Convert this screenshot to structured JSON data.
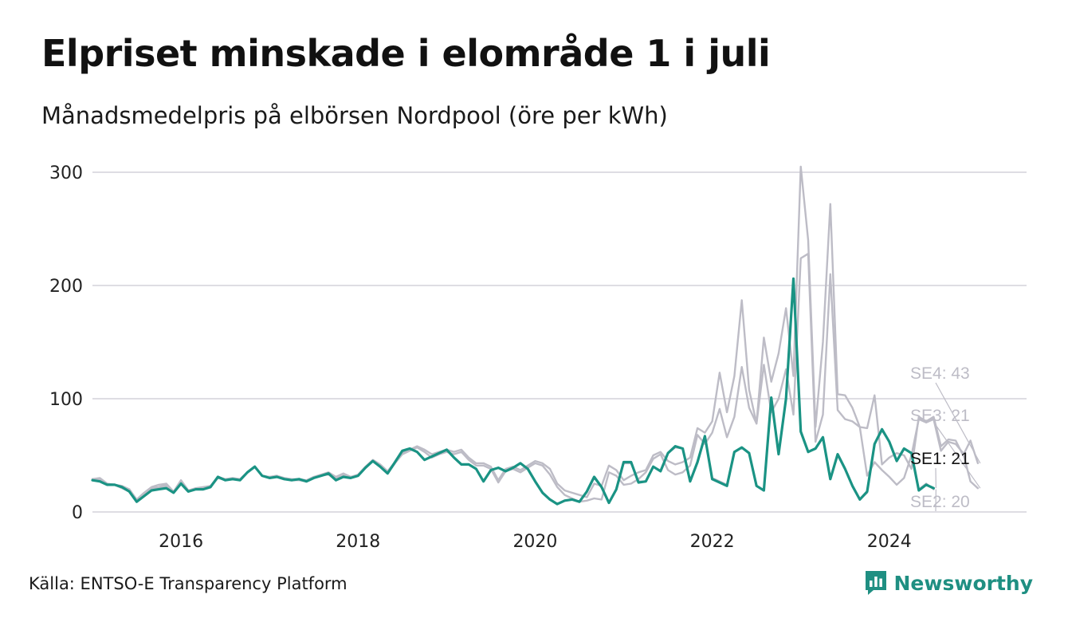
{
  "header": {
    "title": "Elpriset minskade i elområde 1 i juli",
    "subtitle": "Månadsmedelpris på elbörsen Nordpool (öre per kWh)"
  },
  "footer": {
    "source": "Källa: ENTSO-E Transparency Platform",
    "brand": "Newsworthy"
  },
  "colors": {
    "highlight": "#1a9384",
    "others": "#bdbcc6",
    "grid": "#dedde3",
    "brand": "#1f8f82"
  },
  "chart_data": {
    "type": "line",
    "title": "Elpriset minskade i elområde 1 i juli",
    "subtitle": "Månadsmedelpris på elbörsen Nordpool (öre per kWh)",
    "xlabel": "",
    "ylabel": "öre per kWh",
    "x_start": 2015.0,
    "x_step": 0.0833333,
    "xlim": [
      2015.0,
      2025.55
    ],
    "ylim": [
      0,
      300
    ],
    "y_ticks": [
      0,
      100,
      200,
      300
    ],
    "y_tick_labels": [
      "0",
      "100",
      "200",
      "300"
    ],
    "x_ticks": [
      2016,
      2018,
      2020,
      2022,
      2024
    ],
    "x_tick_labels": [
      "2016",
      "2018",
      "2020",
      "2022",
      "2024"
    ],
    "grid": true,
    "series": [
      {
        "name": "SE4",
        "label": "SE4: 43",
        "highlight": false,
        "values": [
          29,
          30,
          25,
          24,
          23,
          20,
          11,
          17,
          22,
          24,
          25,
          18,
          28,
          19,
          21,
          22,
          23,
          31,
          29,
          30,
          29,
          35,
          40,
          32,
          31,
          32,
          30,
          29,
          29,
          28,
          31,
          33,
          35,
          31,
          34,
          31,
          33,
          40,
          46,
          42,
          36,
          44,
          52,
          55,
          58,
          55,
          51,
          53,
          55,
          53,
          55,
          48,
          43,
          43,
          40,
          28,
          38,
          40,
          37,
          41,
          45,
          43,
          38,
          25,
          19,
          17,
          15,
          13,
          25,
          23,
          41,
          37,
          28,
          32,
          35,
          37,
          50,
          53,
          45,
          42,
          44,
          48,
          74,
          70,
          80,
          123,
          88,
          120,
          187,
          108,
          78,
          154,
          115,
          140,
          180,
          120,
          305,
          240,
          75,
          150,
          272,
          104,
          103,
          92,
          75,
          74,
          103,
          42,
          48,
          52,
          50,
          38,
          84,
          80,
          84,
          58,
          64,
          63,
          50,
          63,
          43
        ]
      },
      {
        "name": "SE3",
        "label": "SE3: 21",
        "highlight": false,
        "values": [
          29,
          29,
          25,
          24,
          22,
          20,
          10,
          16,
          21,
          22,
          24,
          17,
          27,
          18,
          20,
          21,
          22,
          30,
          28,
          29,
          29,
          35,
          40,
          32,
          30,
          31,
          29,
          28,
          28,
          27,
          30,
          32,
          34,
          30,
          33,
          30,
          32,
          39,
          45,
          41,
          34,
          43,
          51,
          54,
          57,
          53,
          48,
          51,
          53,
          51,
          53,
          46,
          41,
          41,
          38,
          26,
          36,
          38,
          35,
          39,
          43,
          41,
          33,
          22,
          15,
          12,
          9,
          10,
          12,
          11,
          35,
          32,
          24,
          25,
          29,
          35,
          47,
          51,
          37,
          33,
          35,
          41,
          68,
          60,
          70,
          91,
          66,
          84,
          128,
          92,
          78,
          130,
          88,
          100,
          126,
          86,
          224,
          228,
          62,
          86,
          210,
          90,
          82,
          80,
          75,
          32,
          44,
          37,
          31,
          24,
          30,
          50,
          82,
          79,
          82,
          54,
          62,
          60,
          52,
          27,
          21
        ]
      },
      {
        "name": "SE2",
        "label": "SE2: 20",
        "highlight": false,
        "values": [
          28,
          27,
          24,
          24,
          21,
          18,
          9,
          14,
          19,
          21,
          23,
          17,
          27,
          18,
          20,
          20,
          22,
          31,
          28,
          29,
          28,
          35,
          40,
          32,
          31,
          32,
          29,
          28,
          29,
          27,
          30,
          32,
          33,
          28,
          31,
          30,
          32,
          39,
          45,
          40,
          34,
          43,
          53,
          56,
          53,
          46,
          49,
          52,
          55,
          48,
          42,
          42,
          38,
          27,
          37,
          39,
          36,
          39,
          43,
          38,
          27,
          17,
          11,
          7,
          10,
          11,
          9,
          18,
          30,
          22,
          8,
          20,
          43,
          43,
          27,
          27,
          40,
          36,
          52,
          57,
          56,
          27,
          44,
          66,
          30,
          27,
          24,
          53,
          57,
          52,
          23,
          19,
          100,
          51,
          100,
          205,
          71,
          53,
          56,
          65,
          29,
          50,
          38,
          23,
          11,
          17,
          60,
          72,
          62,
          45,
          56,
          52,
          20,
          25,
          20
        ]
      },
      {
        "name": "SE1",
        "label": "SE1: 21",
        "highlight": true,
        "values": [
          28,
          27,
          24,
          24,
          22,
          18,
          9,
          14,
          19,
          20,
          21,
          17,
          25,
          18,
          20,
          20,
          22,
          31,
          28,
          29,
          28,
          35,
          40,
          32,
          30,
          31,
          29,
          28,
          29,
          27,
          30,
          32,
          34,
          28,
          31,
          30,
          32,
          39,
          45,
          40,
          34,
          44,
          54,
          56,
          53,
          46,
          49,
          52,
          55,
          48,
          42,
          42,
          38,
          27,
          37,
          39,
          36,
          39,
          43,
          38,
          27,
          17,
          11,
          7,
          10,
          11,
          9,
          18,
          31,
          22,
          8,
          20,
          44,
          44,
          26,
          27,
          40,
          36,
          52,
          58,
          56,
          27,
          44,
          67,
          29,
          26,
          23,
          53,
          57,
          52,
          23,
          19,
          101,
          51,
          100,
          206,
          71,
          53,
          56,
          66,
          29,
          51,
          38,
          23,
          11,
          18,
          60,
          73,
          62,
          45,
          56,
          52,
          19,
          24,
          21
        ]
      }
    ]
  }
}
